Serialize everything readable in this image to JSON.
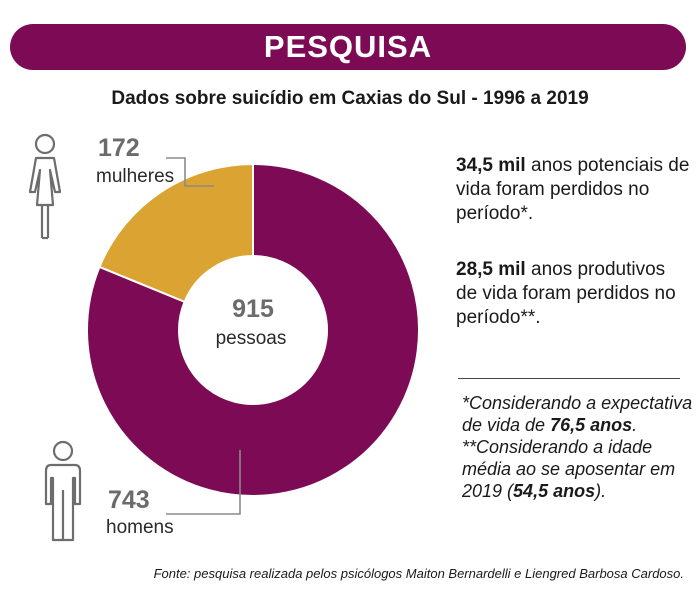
{
  "header": {
    "banner": "PESQUISA"
  },
  "chart_data": {
    "type": "pie",
    "title": "Dados sobre suicídio em Caxias do Sul - 1996 a 2019",
    "total": 915,
    "center_label": "pessoas",
    "slices": [
      {
        "label": "mulheres",
        "value": 172,
        "color": "#dba432"
      },
      {
        "label": "homens",
        "value": 743,
        "color": "#7d0a55"
      }
    ]
  },
  "facts": [
    {
      "bold": "34,5 mil",
      "text": " anos potenciais de vida foram perdidos no período*."
    },
    {
      "bold": "28,5 mil",
      "text": " anos produtivos de vida foram perdidos no período**."
    }
  ],
  "notes": {
    "n1_pre": "*Considerando a expectativa de vida de ",
    "n1_bold": "76,5 anos",
    "n1_post": ".",
    "n2_pre": "**Considerando a idade média ao se aposentar em 2019 (",
    "n2_bold": "54,5 anos",
    "n2_post": ")."
  },
  "source": "Fonte: pesquisa realizada pelos psicólogos Maiton Bernardelli e Liengred Barbosa Cardoso.",
  "icons": {
    "woman": "woman-icon",
    "man": "man-icon"
  }
}
